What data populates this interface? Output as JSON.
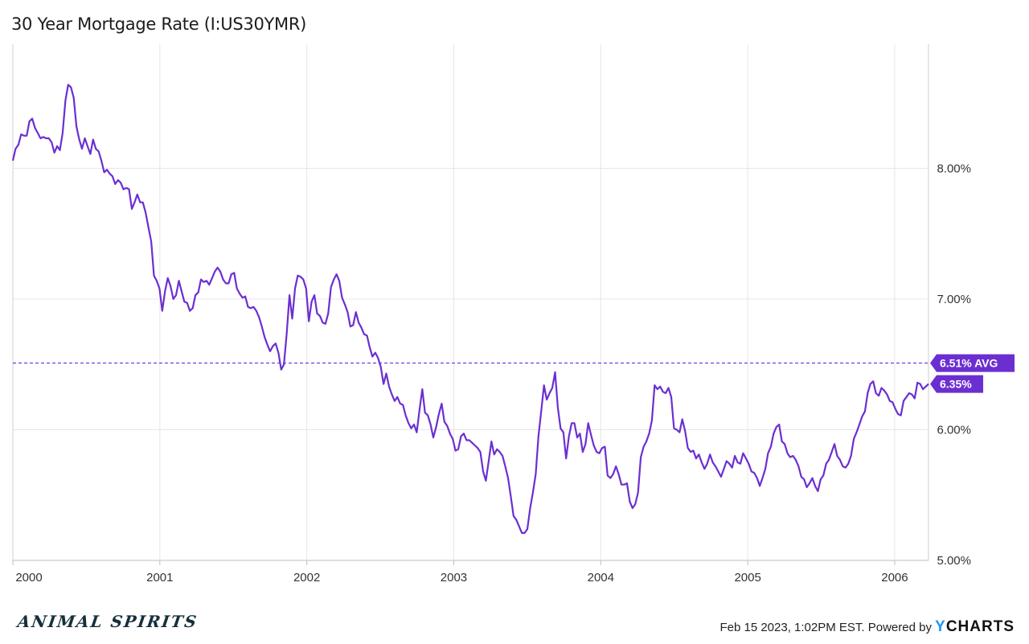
{
  "title": "30 Year Mortgage Rate (I:US30YMR)",
  "footer": {
    "text": "Feb 15 2023, 1:02PM EST. Powered by",
    "brand_y": "Y",
    "brand_rest": "CHARTS"
  },
  "logo_text": "ANIMAL SPIRITS",
  "colors": {
    "line": "#6b2fd1",
    "avg_line": "#6b2fd1",
    "grid": "#e6e6e6",
    "tag_bg": "#6b2fd1"
  },
  "chart_data": {
    "type": "line",
    "title": "30 Year Mortgage Rate (I:US30YMR)",
    "xlabel": "",
    "ylabel": "",
    "x_range": [
      2000.0,
      2006.23
    ],
    "ylim": [
      5.0,
      8.95
    ],
    "y_axis_side": "right",
    "y_ticks": [
      "5.00%",
      "6.00%",
      "7.00%",
      "8.00%"
    ],
    "x_ticks": [
      "2000",
      "2001",
      "2002",
      "2003",
      "2004",
      "2005",
      "2006"
    ],
    "grid": true,
    "series": [
      {
        "frequency": "weekly",
        "values": [
          8.06,
          8.15,
          8.18,
          8.26,
          8.25,
          8.25,
          8.36,
          8.38,
          8.31,
          8.27,
          8.23,
          8.24,
          8.23,
          8.23,
          8.2,
          8.12,
          8.17,
          8.14,
          8.27,
          8.52,
          8.64,
          8.62,
          8.54,
          8.32,
          8.22,
          8.15,
          8.23,
          8.17,
          8.11,
          8.22,
          8.15,
          8.13,
          8.06,
          7.97,
          7.99,
          7.96,
          7.94,
          7.88,
          7.91,
          7.89,
          7.84,
          7.85,
          7.84,
          7.69,
          7.74,
          7.8,
          7.74,
          7.74,
          7.66,
          7.55,
          7.44,
          7.18,
          7.14,
          7.08,
          6.91,
          7.06,
          7.16,
          7.1,
          7.0,
          7.03,
          7.14,
          7.06,
          6.98,
          6.97,
          6.91,
          6.93,
          7.03,
          7.05,
          7.15,
          7.13,
          7.14,
          7.11,
          7.16,
          7.21,
          7.24,
          7.21,
          7.15,
          7.12,
          7.12,
          7.19,
          7.2,
          7.08,
          7.04,
          7.01,
          7.02,
          6.94,
          6.93,
          6.94,
          6.91,
          6.86,
          6.79,
          6.71,
          6.65,
          6.6,
          6.64,
          6.66,
          6.59,
          6.46,
          6.5,
          6.74,
          7.03,
          6.85,
          7.08,
          7.18,
          7.17,
          7.15,
          7.08,
          6.83,
          6.98,
          7.03,
          6.89,
          6.87,
          6.82,
          6.81,
          6.89,
          7.09,
          7.15,
          7.19,
          7.14,
          7.01,
          6.96,
          6.9,
          6.79,
          6.8,
          6.9,
          6.82,
          6.78,
          6.73,
          6.72,
          6.63,
          6.56,
          6.59,
          6.55,
          6.48,
          6.35,
          6.43,
          6.33,
          6.27,
          6.22,
          6.25,
          6.2,
          6.19,
          6.11,
          6.05,
          6.01,
          6.04,
          5.98,
          6.15,
          6.31,
          6.13,
          6.11,
          6.04,
          5.94,
          6.02,
          6.12,
          6.2,
          6.06,
          6.03,
          5.97,
          5.93,
          5.84,
          5.85,
          5.95,
          5.97,
          5.92,
          5.92,
          5.9,
          5.88,
          5.86,
          5.83,
          5.68,
          5.61,
          5.76,
          5.91,
          5.81,
          5.85,
          5.83,
          5.8,
          5.72,
          5.63,
          5.49,
          5.34,
          5.31,
          5.26,
          5.21,
          5.21,
          5.24,
          5.4,
          5.52,
          5.66,
          5.95,
          6.14,
          6.34,
          6.23,
          6.28,
          6.32,
          6.44,
          6.17,
          6.01,
          5.98,
          5.78,
          5.95,
          6.05,
          6.05,
          5.94,
          5.97,
          5.83,
          5.89,
          6.05,
          5.96,
          5.88,
          5.83,
          5.82,
          5.86,
          5.87,
          5.65,
          5.63,
          5.66,
          5.72,
          5.66,
          5.58,
          5.58,
          5.59,
          5.45,
          5.4,
          5.43,
          5.52,
          5.79,
          5.87,
          5.91,
          5.97,
          6.07,
          6.34,
          6.31,
          6.33,
          6.29,
          6.28,
          6.32,
          6.25,
          6.01,
          6.0,
          5.98,
          6.08,
          5.99,
          5.86,
          5.83,
          5.84,
          5.78,
          5.81,
          5.75,
          5.7,
          5.74,
          5.81,
          5.75,
          5.72,
          5.68,
          5.64,
          5.7,
          5.76,
          5.74,
          5.71,
          5.8,
          5.75,
          5.74,
          5.82,
          5.78,
          5.74,
          5.68,
          5.67,
          5.63,
          5.57,
          5.63,
          5.7,
          5.82,
          5.87,
          5.97,
          6.02,
          6.04,
          5.91,
          5.89,
          5.82,
          5.79,
          5.8,
          5.77,
          5.72,
          5.64,
          5.62,
          5.56,
          5.59,
          5.63,
          5.57,
          5.53,
          5.62,
          5.65,
          5.74,
          5.77,
          5.83,
          5.89,
          5.8,
          5.77,
          5.72,
          5.71,
          5.74,
          5.8,
          5.93,
          5.98,
          6.04,
          6.1,
          6.14,
          6.28,
          6.35,
          6.37,
          6.28,
          6.26,
          6.32,
          6.3,
          6.27,
          6.22,
          6.21,
          6.16,
          6.12,
          6.11,
          6.22,
          6.25,
          6.28,
          6.27,
          6.24,
          6.36,
          6.35,
          6.31,
          6.33,
          6.35
        ]
      }
    ],
    "reference_lines": [
      {
        "label": "6.51% AVG",
        "value": 6.51,
        "style": "dashed"
      }
    ],
    "last_value": {
      "label": "6.35%",
      "value": 6.35
    }
  }
}
